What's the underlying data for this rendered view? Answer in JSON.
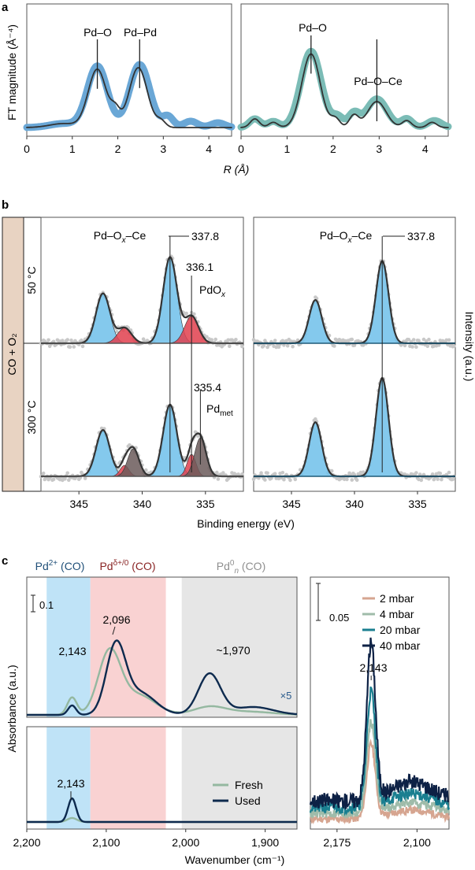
{
  "figure": {
    "panel_labels": [
      "a",
      "b",
      "c"
    ]
  },
  "chart_data": [
    {
      "id": "a-left",
      "type": "line",
      "ylabel": "FT magnitude (Å⁻⁴)",
      "xlabel": "R (Å)",
      "xlim": [
        0,
        4.5
      ],
      "xticks": [
        "0",
        "1",
        "2",
        "3",
        "4"
      ],
      "annotations": [
        {
          "text": "Pd–O",
          "x": 1.55
        },
        {
          "text": "Pd–Pd",
          "x": 2.48
        }
      ],
      "series": [
        {
          "name": "fit",
          "color": "#6aa7d6",
          "peaks": [
            [
              1.55,
              0.78,
              0.22
            ],
            [
              2.48,
              0.8,
              0.22
            ],
            [
              0.8,
              0.05,
              0.3
            ],
            [
              3.1,
              0.14,
              0.12
            ],
            [
              3.6,
              0.08,
              0.15
            ],
            [
              4.2,
              0.06,
              0.15
            ]
          ]
        },
        {
          "name": "data",
          "color": "#333333",
          "peaks": [
            [
              1.55,
              0.74,
              0.2
            ],
            [
              2.45,
              0.76,
              0.2
            ],
            [
              0.8,
              0.05,
              0.3
            ],
            [
              1.95,
              0.18,
              0.1
            ],
            [
              2.95,
              0.08,
              0.1
            ]
          ]
        }
      ]
    },
    {
      "id": "a-right",
      "type": "line",
      "xlim": [
        0,
        4.5
      ],
      "xticks": [
        "0",
        "1",
        "2",
        "3",
        "4"
      ],
      "annotations": [
        {
          "text": "Pd–O",
          "x": 1.52
        },
        {
          "text": "Pd–O–Ce",
          "x": 2.95
        }
      ],
      "series": [
        {
          "name": "fit",
          "color": "#7bbcb6",
          "peaks": [
            [
              1.52,
              0.88,
              0.22
            ],
            [
              2.95,
              0.33,
              0.22
            ],
            [
              0.3,
              0.1,
              0.12
            ],
            [
              0.7,
              0.07,
              0.12
            ],
            [
              2.1,
              0.12,
              0.12
            ],
            [
              2.45,
              0.16,
              0.12
            ],
            [
              3.6,
              0.1,
              0.12
            ],
            [
              4.2,
              0.08,
              0.15
            ]
          ]
        },
        {
          "name": "data",
          "color": "#333333",
          "peaks": [
            [
              1.52,
              0.85,
              0.2
            ],
            [
              2.95,
              0.3,
              0.2
            ],
            [
              0.3,
              0.1,
              0.1
            ],
            [
              0.7,
              0.06,
              0.1
            ],
            [
              2.05,
              0.1,
              0.1
            ],
            [
              2.45,
              0.14,
              0.1
            ],
            [
              3.6,
              0.08,
              0.1
            ],
            [
              4.15,
              0.06,
              0.1
            ]
          ]
        }
      ]
    },
    {
      "id": "b-left",
      "type": "line",
      "xlabel": "Binding energy (eV)",
      "xlim": [
        348,
        332
      ],
      "xticks": [
        "345",
        "340",
        "335"
      ],
      "side_label": "CO + O₂",
      "rows": [
        {
          "temp": "50 °C",
          "peaks": [
            {
              "pos": 337.8,
              "h": 0.95,
              "w": 0.55,
              "color": "#6ec0ea"
            },
            {
              "pos": 343.1,
              "h": 0.55,
              "w": 0.55,
              "color": "#6ec0ea"
            },
            {
              "pos": 336.1,
              "h": 0.3,
              "w": 0.55,
              "color": "#e0404e"
            },
            {
              "pos": 341.4,
              "h": 0.17,
              "w": 0.55,
              "color": "#e0404e"
            }
          ]
        },
        {
          "temp": "300 °C",
          "peaks": [
            {
              "pos": 337.8,
              "h": 0.65,
              "w": 0.55,
              "color": "#6ec0ea"
            },
            {
              "pos": 343.1,
              "h": 0.42,
              "w": 0.55,
              "color": "#6ec0ea"
            },
            {
              "pos": 336.1,
              "h": 0.2,
              "w": 0.35,
              "color": "#e0404e"
            },
            {
              "pos": 341.4,
              "h": 0.1,
              "w": 0.35,
              "color": "#e0404e"
            },
            {
              "pos": 335.4,
              "h": 0.35,
              "w": 0.45,
              "color": "#6b5a5a"
            },
            {
              "pos": 340.7,
              "h": 0.25,
              "w": 0.45,
              "color": "#6b5a5a"
            }
          ]
        }
      ],
      "annotations": [
        "Pd–O",
        "x",
        "–Ce",
        "337.8",
        "336.1",
        "PdO",
        "x",
        "335.4",
        "Pd",
        "met"
      ]
    },
    {
      "id": "b-right",
      "type": "line",
      "xlim": [
        348,
        332
      ],
      "xticks": [
        "345",
        "340",
        "335"
      ],
      "ylabel": "Intensity (a.u.)",
      "rows": [
        {
          "peaks": [
            {
              "pos": 337.8,
              "h": 0.95,
              "w": 0.5,
              "color": "#6ec0ea"
            },
            {
              "pos": 343.1,
              "h": 0.5,
              "w": 0.5,
              "color": "#6ec0ea"
            }
          ]
        },
        {
          "peaks": [
            {
              "pos": 337.8,
              "h": 1.0,
              "w": 0.5,
              "color": "#6ec0ea"
            },
            {
              "pos": 343.1,
              "h": 0.55,
              "w": 0.5,
              "color": "#6ec0ea"
            }
          ]
        }
      ],
      "annotations": [
        "Pd–O",
        "x",
        "–Ce",
        "337.8"
      ]
    },
    {
      "id": "c-main",
      "type": "line",
      "xlabel": "Wavenumber (cm⁻¹)",
      "ylabel": "Absorbance (a.u.)",
      "xlim": [
        2200,
        1860
      ],
      "xticks": [
        "2,200",
        "2,100",
        "2,000",
        "1,900"
      ],
      "band_labels": {
        "pd2": "Pd",
        "pd2_sup": "2+",
        "pd2_tail": " (CO)",
        "pdd": "Pd",
        "pdd_sup": "δ+/0",
        "pdd_tail": " (CO)",
        "pd0": "Pd",
        "pd0_sup": "0",
        "pd0_sub": "n",
        "pd0_tail": " (CO)"
      },
      "bands": [
        {
          "from": 2175,
          "to": 2120,
          "color": "#bfe3f7"
        },
        {
          "from": 2120,
          "to": 2025,
          "color": "#f9d2d2"
        },
        {
          "from": 2005,
          "to": 1860,
          "color": "#e6e6e6"
        }
      ],
      "scalebar": "0.1",
      "top_annotations": [
        "2,143",
        "2,096",
        "~1,970",
        "×5"
      ],
      "bottom_annotations": [
        "2,143"
      ],
      "legend": [
        {
          "name": "Fresh",
          "color": "#94b8a0"
        },
        {
          "name": "Used",
          "color": "#0d2a4e"
        }
      ],
      "top_series": [
        {
          "name": "Fresh",
          "color": "#94b8a0",
          "peaks": [
            [
              2143,
              0.22,
              6
            ],
            [
              2096,
              0.78,
              14
            ],
            [
              2060,
              0.25,
              22
            ],
            [
              1970,
              0.1,
              20
            ],
            [
              1920,
              0.04,
              30
            ]
          ]
        },
        {
          "name": "Used",
          "color": "#0d2a4e",
          "peaks": [
            [
              2143,
              0.12,
              5
            ],
            [
              2088,
              0.85,
              12
            ],
            [
              2058,
              0.28,
              20
            ],
            [
              1970,
              0.52,
              14
            ],
            [
              1915,
              0.1,
              25
            ]
          ]
        }
      ],
      "bottom_series": [
        {
          "name": "Fresh",
          "color": "#94b8a0",
          "peaks": [
            [
              2143,
              0.05,
              6
            ]
          ]
        },
        {
          "name": "Used",
          "color": "#0d2a4e",
          "peaks": [
            [
              2143,
              0.3,
              5
            ]
          ]
        }
      ]
    },
    {
      "id": "c-right",
      "type": "line",
      "xlim": [
        2200,
        2070
      ],
      "xticks": [
        "2,175",
        "2,100"
      ],
      "scalebar": "0.05",
      "annotation": "2,143",
      "legend": [
        {
          "name": "2 mbar",
          "color": "#d6a590",
          "h": 0.45
        },
        {
          "name": "4 mbar",
          "color": "#9fbcaa",
          "h": 0.55
        },
        {
          "name": "20 mbar",
          "color": "#1a7f90",
          "h": 0.7
        },
        {
          "name": "40 mbar",
          "color": "#0d2145",
          "h": 0.95
        }
      ]
    }
  ]
}
